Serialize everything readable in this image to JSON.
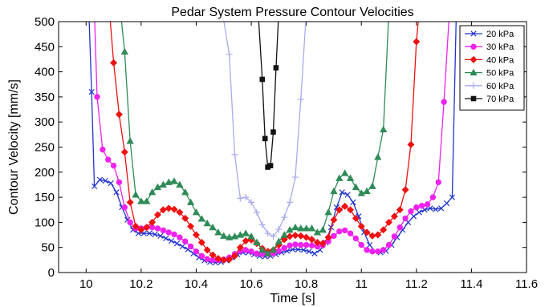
{
  "chart_data": {
    "type": "line",
    "title": "Pedar System Pressure Contour Velocities",
    "xlabel": "Time [s]",
    "ylabel": "Contour Velocity [mm/s]",
    "xlim": [
      9.9,
      11.6
    ],
    "ylim": [
      0,
      500
    ],
    "xticks": [
      10,
      10.2,
      10.4,
      10.6,
      10.8,
      11,
      11.2,
      11.4,
      11.6
    ],
    "yticks": [
      0,
      50,
      100,
      150,
      200,
      250,
      300,
      350,
      400,
      450,
      500
    ],
    "grid": false,
    "legend_position": "top-right",
    "series": [
      {
        "name": "20 kPa",
        "color": "#2233cc",
        "marker": "x",
        "points": [
          [
            10.01,
            520
          ],
          [
            10.02,
            360
          ],
          [
            10.03,
            172
          ],
          [
            10.05,
            185
          ],
          [
            10.07,
            183
          ],
          [
            10.09,
            178
          ],
          [
            10.11,
            160
          ],
          [
            10.13,
            130
          ],
          [
            10.15,
            105
          ],
          [
            10.17,
            85
          ],
          [
            10.19,
            78
          ],
          [
            10.21,
            78
          ],
          [
            10.23,
            78
          ],
          [
            10.25,
            76
          ],
          [
            10.27,
            73
          ],
          [
            10.29,
            68
          ],
          [
            10.31,
            63
          ],
          [
            10.33,
            58
          ],
          [
            10.35,
            52
          ],
          [
            10.37,
            46
          ],
          [
            10.39,
            38
          ],
          [
            10.41,
            30
          ],
          [
            10.43,
            24
          ],
          [
            10.45,
            21
          ],
          [
            10.47,
            20
          ],
          [
            10.49,
            21
          ],
          [
            10.51,
            24
          ],
          [
            10.53,
            30
          ],
          [
            10.55,
            36
          ],
          [
            10.57,
            40
          ],
          [
            10.59,
            40
          ],
          [
            10.61,
            36
          ],
          [
            10.63,
            33
          ],
          [
            10.65,
            32
          ],
          [
            10.67,
            33
          ],
          [
            10.69,
            36
          ],
          [
            10.71,
            40
          ],
          [
            10.73,
            43
          ],
          [
            10.75,
            46
          ],
          [
            10.77,
            46
          ],
          [
            10.79,
            45
          ],
          [
            10.81,
            42
          ],
          [
            10.83,
            38
          ],
          [
            10.85,
            45
          ],
          [
            10.87,
            60
          ],
          [
            10.89,
            90
          ],
          [
            10.91,
            130
          ],
          [
            10.93,
            160
          ],
          [
            10.95,
            155
          ],
          [
            10.97,
            140
          ],
          [
            10.99,
            112
          ],
          [
            11.01,
            80
          ],
          [
            11.03,
            55
          ],
          [
            11.05,
            42
          ],
          [
            11.07,
            40
          ],
          [
            11.09,
            43
          ],
          [
            11.11,
            55
          ],
          [
            11.13,
            70
          ],
          [
            11.15,
            85
          ],
          [
            11.17,
            100
          ],
          [
            11.19,
            112
          ],
          [
            11.21,
            120
          ],
          [
            11.23,
            125
          ],
          [
            11.25,
            128
          ],
          [
            11.27,
            126
          ],
          [
            11.29,
            128
          ],
          [
            11.31,
            138
          ],
          [
            11.33,
            150
          ],
          [
            11.345,
            520
          ]
        ]
      },
      {
        "name": "30 kPa",
        "color": "#ee22ee",
        "marker": "o",
        "points": [
          [
            10.03,
            520
          ],
          [
            10.04,
            350
          ],
          [
            10.06,
            245
          ],
          [
            10.08,
            225
          ],
          [
            10.1,
            213
          ],
          [
            10.12,
            180
          ],
          [
            10.14,
            130
          ],
          [
            10.16,
            100
          ],
          [
            10.18,
            88
          ],
          [
            10.2,
            88
          ],
          [
            10.22,
            90
          ],
          [
            10.24,
            90
          ],
          [
            10.26,
            88
          ],
          [
            10.28,
            84
          ],
          [
            10.3,
            80
          ],
          [
            10.32,
            76
          ],
          [
            10.34,
            70
          ],
          [
            10.36,
            62
          ],
          [
            10.38,
            52
          ],
          [
            10.4,
            42
          ],
          [
            10.42,
            33
          ],
          [
            10.44,
            27
          ],
          [
            10.46,
            25
          ],
          [
            10.48,
            25
          ],
          [
            10.5,
            26
          ],
          [
            10.52,
            30
          ],
          [
            10.54,
            37
          ],
          [
            10.56,
            43
          ],
          [
            10.58,
            45
          ],
          [
            10.6,
            42
          ],
          [
            10.62,
            38
          ],
          [
            10.64,
            37
          ],
          [
            10.66,
            37
          ],
          [
            10.68,
            38
          ],
          [
            10.7,
            43
          ],
          [
            10.72,
            49
          ],
          [
            10.74,
            54
          ],
          [
            10.76,
            56
          ],
          [
            10.78,
            55
          ],
          [
            10.8,
            55
          ],
          [
            10.82,
            54
          ],
          [
            10.84,
            52
          ],
          [
            10.86,
            54
          ],
          [
            10.88,
            62
          ],
          [
            10.9,
            73
          ],
          [
            10.92,
            82
          ],
          [
            10.94,
            84
          ],
          [
            10.96,
            78
          ],
          [
            10.98,
            68
          ],
          [
            11.0,
            55
          ],
          [
            11.02,
            45
          ],
          [
            11.04,
            42
          ],
          [
            11.06,
            42
          ],
          [
            11.08,
            45
          ],
          [
            11.1,
            55
          ],
          [
            11.12,
            72
          ],
          [
            11.14,
            90
          ],
          [
            11.16,
            108
          ],
          [
            11.18,
            122
          ],
          [
            11.2,
            130
          ],
          [
            11.22,
            133
          ],
          [
            11.24,
            136
          ],
          [
            11.26,
            150
          ],
          [
            11.28,
            180
          ],
          [
            11.3,
            340
          ],
          [
            11.32,
            520
          ]
        ]
      },
      {
        "name": "40 kPa",
        "color": "#ee1111",
        "marker": "D",
        "points": [
          [
            10.085,
            520
          ],
          [
            10.1,
            418
          ],
          [
            10.12,
            315
          ],
          [
            10.14,
            240
          ],
          [
            10.16,
            140
          ],
          [
            10.18,
            92
          ],
          [
            10.2,
            85
          ],
          [
            10.22,
            90
          ],
          [
            10.24,
            100
          ],
          [
            10.26,
            115
          ],
          [
            10.28,
            125
          ],
          [
            10.3,
            128
          ],
          [
            10.32,
            126
          ],
          [
            10.34,
            120
          ],
          [
            10.36,
            108
          ],
          [
            10.38,
            92
          ],
          [
            10.4,
            75
          ],
          [
            10.42,
            60
          ],
          [
            10.44,
            45
          ],
          [
            10.46,
            35
          ],
          [
            10.48,
            28
          ],
          [
            10.5,
            25
          ],
          [
            10.52,
            26
          ],
          [
            10.54,
            33
          ],
          [
            10.56,
            50
          ],
          [
            10.58,
            63
          ],
          [
            10.6,
            65
          ],
          [
            10.62,
            58
          ],
          [
            10.64,
            48
          ],
          [
            10.66,
            42
          ],
          [
            10.68,
            45
          ],
          [
            10.7,
            55
          ],
          [
            10.72,
            66
          ],
          [
            10.74,
            72
          ],
          [
            10.76,
            74
          ],
          [
            10.78,
            73
          ],
          [
            10.8,
            70
          ],
          [
            10.82,
            66
          ],
          [
            10.84,
            60
          ],
          [
            10.86,
            58
          ],
          [
            10.88,
            70
          ],
          [
            10.9,
            105
          ],
          [
            10.92,
            125
          ],
          [
            10.94,
            132
          ],
          [
            10.96,
            125
          ],
          [
            10.98,
            108
          ],
          [
            11.0,
            92
          ],
          [
            11.02,
            80
          ],
          [
            11.04,
            73
          ],
          [
            11.06,
            75
          ],
          [
            11.08,
            85
          ],
          [
            11.1,
            100
          ],
          [
            11.12,
            112
          ],
          [
            11.14,
            125
          ],
          [
            11.16,
            165
          ],
          [
            11.18,
            255
          ],
          [
            11.2,
            460
          ],
          [
            11.21,
            520
          ]
        ]
      },
      {
        "name": "50 kPa",
        "color": "#2e8b57",
        "marker": "^",
        "points": [
          [
            10.125,
            520
          ],
          [
            10.14,
            440
          ],
          [
            10.16,
            262
          ],
          [
            10.18,
            155
          ],
          [
            10.2,
            142
          ],
          [
            10.22,
            142
          ],
          [
            10.24,
            160
          ],
          [
            10.26,
            170
          ],
          [
            10.28,
            175
          ],
          [
            10.3,
            180
          ],
          [
            10.32,
            182
          ],
          [
            10.34,
            175
          ],
          [
            10.36,
            160
          ],
          [
            10.38,
            140
          ],
          [
            10.4,
            120
          ],
          [
            10.42,
            107
          ],
          [
            10.44,
            98
          ],
          [
            10.46,
            90
          ],
          [
            10.48,
            80
          ],
          [
            10.5,
            73
          ],
          [
            10.52,
            70
          ],
          [
            10.54,
            72
          ],
          [
            10.56,
            75
          ],
          [
            10.58,
            78
          ],
          [
            10.6,
            72
          ],
          [
            10.62,
            60
          ],
          [
            10.64,
            45
          ],
          [
            10.66,
            38
          ],
          [
            10.68,
            45
          ],
          [
            10.7,
            62
          ],
          [
            10.72,
            75
          ],
          [
            10.74,
            85
          ],
          [
            10.76,
            90
          ],
          [
            10.78,
            88
          ],
          [
            10.8,
            88
          ],
          [
            10.82,
            88
          ],
          [
            10.84,
            80
          ],
          [
            10.86,
            85
          ],
          [
            10.88,
            120
          ],
          [
            10.9,
            162
          ],
          [
            10.92,
            188
          ],
          [
            10.94,
            198
          ],
          [
            10.96,
            188
          ],
          [
            10.98,
            170
          ],
          [
            11.0,
            158
          ],
          [
            11.02,
            162
          ],
          [
            11.04,
            172
          ],
          [
            11.06,
            230
          ],
          [
            11.08,
            285
          ],
          [
            11.1,
            520
          ]
        ]
      },
      {
        "name": "60 kPa",
        "color": "#aaaaee",
        "marker": "+",
        "points": [
          [
            10.495,
            520
          ],
          [
            10.52,
            435
          ],
          [
            10.54,
            235
          ],
          [
            10.56,
            148
          ],
          [
            10.58,
            150
          ],
          [
            10.6,
            140
          ],
          [
            10.62,
            120
          ],
          [
            10.64,
            95
          ],
          [
            10.66,
            78
          ],
          [
            10.68,
            72
          ],
          [
            10.7,
            86
          ],
          [
            10.72,
            110
          ],
          [
            10.74,
            140
          ],
          [
            10.76,
            190
          ],
          [
            10.78,
            345
          ],
          [
            10.8,
            520
          ]
        ]
      },
      {
        "name": "70 kPa",
        "color": "#111111",
        "marker": "s",
        "points": [
          [
            10.625,
            520
          ],
          [
            10.64,
            385
          ],
          [
            10.65,
            267
          ],
          [
            10.66,
            210
          ],
          [
            10.67,
            213
          ],
          [
            10.68,
            280
          ],
          [
            10.69,
            408
          ],
          [
            10.7,
            520
          ]
        ]
      }
    ]
  }
}
